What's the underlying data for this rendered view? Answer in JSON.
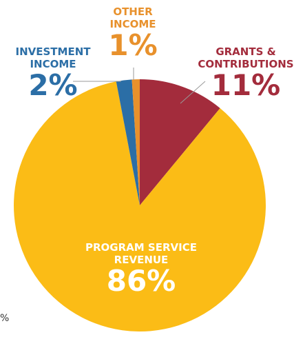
{
  "chart_data": {
    "type": "pie",
    "categories": [
      "GRANTS &\nCONTRIBUTIONS",
      "PROGRAM SERVICE\nREVENUE",
      "INVESTMENT\nINCOME",
      "OTHER\nINCOME"
    ],
    "values": [
      11,
      86,
      2,
      1
    ],
    "value_labels": [
      "11%",
      "86%",
      "2%",
      "1%"
    ],
    "colors": [
      "#a32c3c",
      "#fbbc16",
      "#2b6ea6",
      "#e8912c"
    ],
    "label_colors": [
      "#a32c3c",
      "#ffffff",
      "#2b6ea6",
      "#e8912c"
    ],
    "start_angle": 0,
    "direction": "clockwise",
    "annotations": [
      "%"
    ]
  }
}
